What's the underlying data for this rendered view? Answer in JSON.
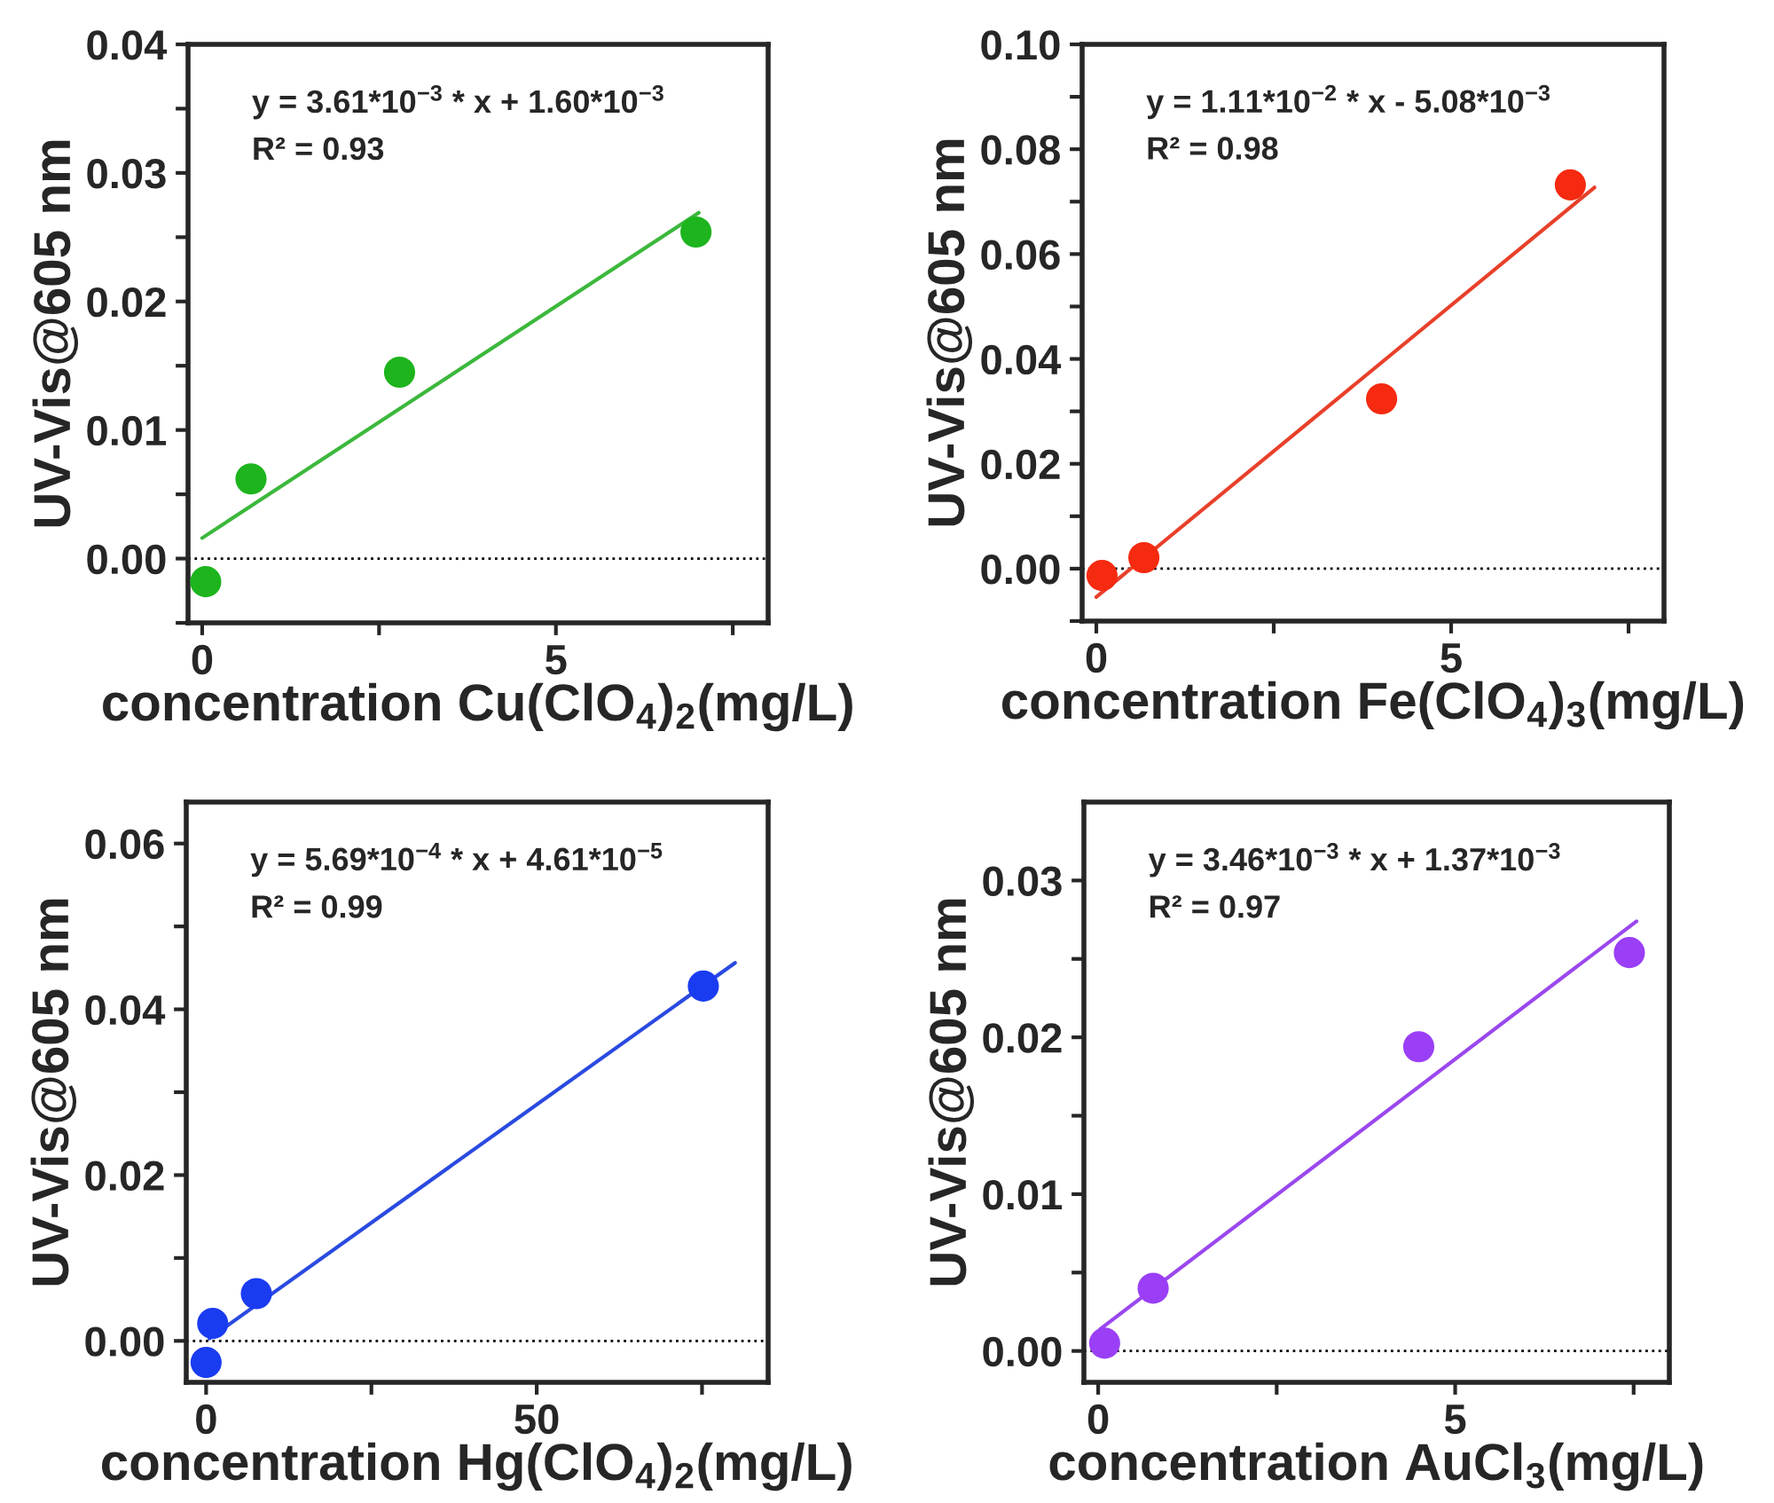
{
  "chart_data": [
    {
      "type": "scatter",
      "xlabel": "concentration Cu(ClO$_{4}$)$_{2}$(mg/L)",
      "ylabel": "UV-Vis@605 nm",
      "annotations": [
        "y = 3.61*10$^{−3}$ * x + 1.60*10$^{−3}$",
        "R² = 0.93"
      ],
      "series": [
        {
          "color": "#1db41d",
          "marker": "circle",
          "x": [
            0.05,
            0.69,
            2.79,
            6.98
          ],
          "values": [
            -0.0018,
            0.0062,
            0.0145,
            0.0254
          ]
        },
        {
          "type": "line",
          "color": "#3cb83c",
          "line_style": "solid",
          "x": [
            0,
            7.02
          ],
          "values": [
            0.0016,
            0.0269
          ]
        }
      ],
      "xlim": [
        -0.2,
        8.0
      ],
      "xticks": [
        0,
        {
          "value": 2.5,
          "label": null
        },
        5,
        {
          "value": 7.5,
          "label": null
        }
      ],
      "ylim": [
        -0.005,
        0.04
      ],
      "yticks": [
        {
          "value": -0.005,
          "label": null
        },
        {
          "value": 0,
          "label": "0.00"
        },
        {
          "value": 0.005,
          "label": null
        },
        {
          "value": 0.01,
          "label": "0.01"
        },
        {
          "value": 0.015,
          "label": null
        },
        {
          "value": 0.02,
          "label": "0.02"
        },
        {
          "value": 0.025,
          "label": null
        },
        {
          "value": 0.03,
          "label": "0.03"
        },
        {
          "value": 0.035,
          "label": null
        },
        {
          "value": 0.04,
          "label": "0.04"
        }
      ],
      "ref_lines": [
        {
          "axis": "y",
          "value": 0,
          "color": "#000000",
          "line_style": "dotted"
        }
      ],
      "grid": false,
      "legend": false
    },
    {
      "type": "scatter",
      "xlabel": "concentration Fe(ClO$_{4}$)$_{3}$(mg/L)",
      "ylabel": "UV-Vis@605 nm",
      "annotations": [
        "y = 1.11*10$^{−2}$ * x - 5.08*10$^{−3}$",
        "R² = 0.98"
      ],
      "series": [
        {
          "color": "#f52a10",
          "marker": "circle",
          "x": [
            0.08,
            0.67,
            4.02,
            6.68
          ],
          "values": [
            -0.0013,
            0.0021,
            0.0324,
            0.0732
          ]
        },
        {
          "type": "line",
          "color": "#e8402a",
          "line_style": "solid",
          "x": [
            0,
            7.02
          ],
          "values": [
            -0.0054,
            0.0727
          ]
        }
      ],
      "xlim": [
        -0.2,
        8.0
      ],
      "xticks": [
        0,
        {
          "value": 2.5,
          "label": null
        },
        5,
        {
          "value": 7.5,
          "label": null
        }
      ],
      "ylim": [
        -0.01,
        0.1
      ],
      "yticks": [
        {
          "value": -0.01,
          "label": null
        },
        {
          "value": 0,
          "label": "0.00"
        },
        {
          "value": 0.01,
          "label": null
        },
        {
          "value": 0.02,
          "label": "0.02"
        },
        {
          "value": 0.03,
          "label": null
        },
        {
          "value": 0.04,
          "label": "0.04"
        },
        {
          "value": 0.05,
          "label": null
        },
        {
          "value": 0.06,
          "label": "0.06"
        },
        {
          "value": 0.07,
          "label": null
        },
        {
          "value": 0.08,
          "label": "0.08"
        },
        {
          "value": 0.09,
          "label": null
        },
        {
          "value": 0.1,
          "label": "0.10"
        }
      ],
      "ref_lines": [
        {
          "axis": "y",
          "value": 0,
          "color": "#000000",
          "line_style": "dotted"
        }
      ],
      "grid": false,
      "legend": false
    },
    {
      "type": "scatter",
      "xlabel": "concentration Hg(ClO$_{4}$)$_{2}$(mg/L)",
      "ylabel": "UV-Vis@605 nm",
      "annotations": [
        "y = 5.69*10$^{−4}$ * x + 4.61*10$^{−5}$",
        "R² = 0.99"
      ],
      "series": [
        {
          "color": "#1a3cf0",
          "marker": "circle",
          "x": [
            0,
            1.0,
            7.6,
            75.2
          ],
          "values": [
            -0.0026,
            0.0021,
            0.0057,
            0.0428
          ]
        },
        {
          "type": "line",
          "color": "#2a4ae0",
          "line_style": "solid",
          "x": [
            0.5,
            80
          ],
          "values": [
            0.0003,
            0.0456
          ]
        }
      ],
      "xlim": [
        -3,
        85
      ],
      "xticks": [
        0,
        {
          "value": 25,
          "label": null
        },
        50,
        {
          "value": 75,
          "label": null
        }
      ],
      "ylim": [
        -0.005,
        0.065
      ],
      "yticks": [
        {
          "value": 0,
          "label": "0.00"
        },
        {
          "value": 0.01,
          "label": null
        },
        {
          "value": 0.02,
          "label": "0.02"
        },
        {
          "value": 0.03,
          "label": null
        },
        {
          "value": 0.04,
          "label": "0.04"
        },
        {
          "value": 0.05,
          "label": null
        },
        {
          "value": 0.06,
          "label": "0.06"
        }
      ],
      "ref_lines": [
        {
          "axis": "y",
          "value": 0,
          "color": "#000000",
          "line_style": "dotted"
        }
      ],
      "grid": false,
      "legend": false
    },
    {
      "type": "scatter",
      "xlabel": "concentration AuCl$_{3}$(mg/L)",
      "ylabel": "UV-Vis@605 nm",
      "annotations": [
        "y = 3.46*10$^{−3}$ * x + 1.37*10$^{−3}$",
        "R² = 0.97"
      ],
      "series": [
        {
          "color": "#9a3ff5",
          "marker": "circle",
          "x": [
            0.09,
            0.77,
            4.49,
            7.44
          ],
          "values": [
            0.0005,
            0.004,
            0.0194,
            0.0254
          ]
        },
        {
          "type": "line",
          "color": "#9a48ee",
          "line_style": "solid",
          "x": [
            0.03,
            7.54
          ],
          "values": [
            0.0014,
            0.0274
          ]
        }
      ],
      "xlim": [
        -0.2,
        8.0
      ],
      "xticks": [
        0,
        {
          "value": 2.5,
          "label": null
        },
        5,
        {
          "value": 7.5,
          "label": null
        }
      ],
      "ylim": [
        -0.002,
        0.035
      ],
      "yticks": [
        {
          "value": 0,
          "label": "0.00"
        },
        {
          "value": 0.005,
          "label": null
        },
        {
          "value": 0.01,
          "label": "0.01"
        },
        {
          "value": 0.015,
          "label": null
        },
        {
          "value": 0.02,
          "label": "0.02"
        },
        {
          "value": 0.025,
          "label": null
        },
        {
          "value": 0.03,
          "label": "0.03"
        }
      ],
      "ref_lines": [
        {
          "axis": "y",
          "value": 0,
          "color": "#000000",
          "line_style": "dotted"
        }
      ],
      "grid": false,
      "legend": false
    }
  ]
}
